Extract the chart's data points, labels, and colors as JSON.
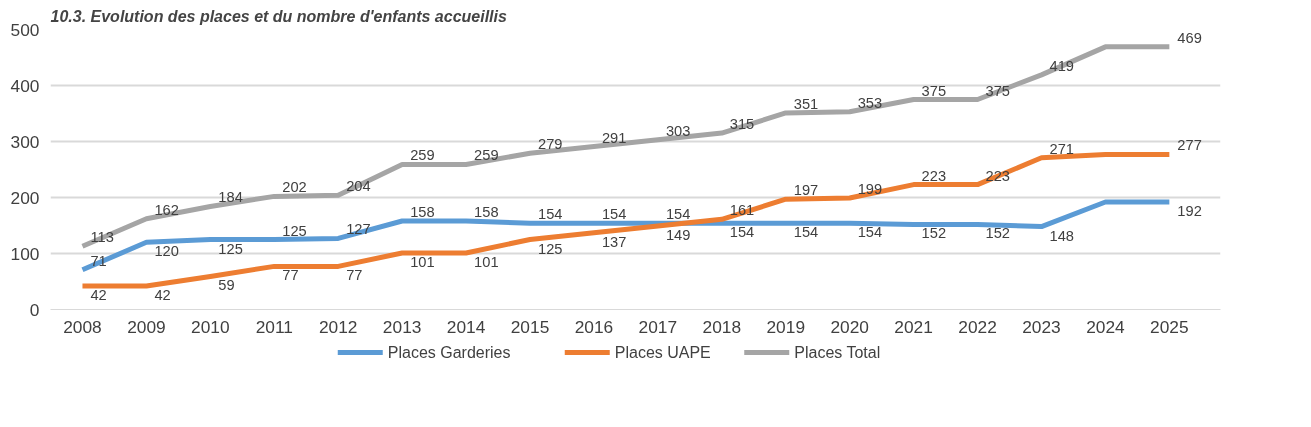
{
  "chart_data": {
    "type": "line",
    "title": "10.3. Evolution des places et du nombre d'enfants accueillis",
    "categories": [
      "2008",
      "2009",
      "2010",
      "2011",
      "2012",
      "2013",
      "2014",
      "2015",
      "2016",
      "2017",
      "2018",
      "2019",
      "2020",
      "2021",
      "2022",
      "2023",
      "2024",
      "2025"
    ],
    "series": [
      {
        "name": "Places Garderies",
        "color": "#5b9bd5",
        "values": [
          71,
          120,
          125,
          125,
          127,
          158,
          158,
          154,
          154,
          154,
          154,
          154,
          154,
          152,
          152,
          148,
          192,
          192
        ],
        "value_labels": [
          "71",
          "120",
          "125",
          "125",
          "127",
          "158",
          "158",
          "154",
          "154",
          "154",
          "154",
          "154",
          "154",
          "152",
          "152",
          "148",
          null,
          "192"
        ]
      },
      {
        "name": "Places UAPE",
        "color": "#ed7d31",
        "values": [
          42,
          42,
          59,
          77,
          77,
          101,
          101,
          125,
          137,
          149,
          161,
          197,
          199,
          223,
          223,
          271,
          277,
          277
        ],
        "value_labels": [
          "42",
          "42",
          "59",
          "77",
          "77",
          "101",
          "101",
          "125",
          "137",
          "149",
          "161",
          "197",
          "199",
          "223",
          "223",
          "271",
          null,
          "277"
        ]
      },
      {
        "name": "Places Total",
        "color": "#a5a5a5",
        "values": [
          113,
          162,
          184,
          202,
          204,
          259,
          259,
          279,
          291,
          303,
          315,
          351,
          353,
          375,
          375,
          419,
          469,
          469
        ],
        "value_labels": [
          "113",
          "162",
          "184",
          "202",
          "204",
          "259",
          "259",
          "279",
          "291",
          "303",
          "315",
          "351",
          "353",
          "375",
          "375",
          "419",
          null,
          "469"
        ]
      }
    ],
    "ylim": [
      0,
      500
    ],
    "yticks": [
      0,
      100,
      200,
      300,
      400,
      500
    ],
    "grid": "y",
    "legend": "bottom",
    "marker": "none",
    "line_style": "solid"
  }
}
